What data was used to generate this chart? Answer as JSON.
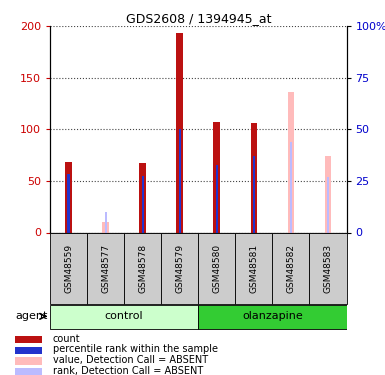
{
  "title": "GDS2608 / 1394945_at",
  "samples": [
    "GSM48559",
    "GSM48577",
    "GSM48578",
    "GSM48579",
    "GSM48580",
    "GSM48581",
    "GSM48582",
    "GSM48583"
  ],
  "groups": [
    "control",
    "control",
    "control",
    "control",
    "olanzapine",
    "olanzapine",
    "olanzapine",
    "olanzapine"
  ],
  "count_values": [
    68,
    0,
    67,
    193,
    107,
    106,
    0,
    0
  ],
  "rank_values": [
    57,
    0,
    55,
    100,
    65,
    74,
    0,
    0
  ],
  "absent_value": [
    0,
    10,
    0,
    0,
    0,
    0,
    136,
    74
  ],
  "absent_rank": [
    0,
    20,
    0,
    0,
    0,
    0,
    88,
    54
  ],
  "count_color": "#bb1111",
  "rank_color": "#2233cc",
  "absent_value_color": "#ffbbbb",
  "absent_rank_color": "#bbbbff",
  "control_bg_light": "#ccffcc",
  "control_bg_dark": "#44dd44",
  "olanzapine_bg": "#33cc33",
  "sample_bg": "#cccccc",
  "ylim_left": [
    0,
    200
  ],
  "ylim_right": [
    0,
    100
  ],
  "yticks_left": [
    0,
    50,
    100,
    150,
    200
  ],
  "yticks_right": [
    0,
    25,
    50,
    75,
    100
  ],
  "ytick_labels_right": [
    "0",
    "25",
    "50",
    "75",
    "100%"
  ],
  "ylabel_left_color": "#cc0000",
  "ylabel_right_color": "#0000cc",
  "count_bar_width": 0.18,
  "rank_bar_width": 0.06,
  "absent_bar_width": 0.18,
  "absent_rank_bar_width": 0.06,
  "agent_label": "agent",
  "control_label": "control",
  "olanzapine_label": "olanzapine",
  "legend_items": [
    {
      "label": "count",
      "color": "#bb1111"
    },
    {
      "label": "percentile rank within the sample",
      "color": "#2233cc"
    },
    {
      "label": "value, Detection Call = ABSENT",
      "color": "#ffbbbb"
    },
    {
      "label": "rank, Detection Call = ABSENT",
      "color": "#bbbbff"
    }
  ]
}
